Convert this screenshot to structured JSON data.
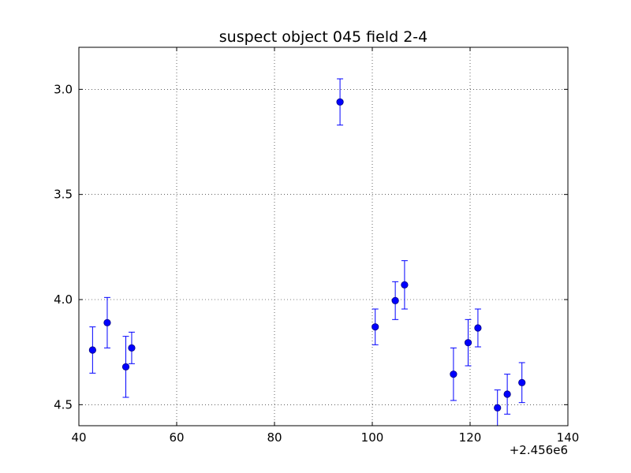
{
  "chart_data": {
    "type": "scatter",
    "title": "suspect object 045 field 2-4",
    "xlabel": "",
    "ylabel": "",
    "xlim": [
      40,
      140
    ],
    "ylim": [
      2.8,
      4.6
    ],
    "y_inverted": true,
    "grid": true,
    "x_offset_label": "+2.456e6",
    "x_ticks": [
      40,
      60,
      80,
      100,
      120,
      140
    ],
    "x_tick_labels": [
      "40",
      "60",
      "80",
      "100",
      "120",
      "140"
    ],
    "y_ticks": [
      3.0,
      3.5,
      4.0,
      4.5
    ],
    "y_tick_labels": [
      "3.0",
      "3.5",
      "4.0",
      "4.5"
    ],
    "colors": {
      "series": "#0000ff",
      "marker_edge": "#000080"
    },
    "series": [
      {
        "x": [
          42.8,
          45.8,
          49.6,
          50.8,
          93.4,
          100.6,
          104.7,
          106.6,
          116.6,
          119.6,
          121.6,
          125.6,
          127.6,
          130.6
        ],
        "y": [
          4.24,
          4.11,
          4.32,
          4.23,
          3.06,
          4.13,
          4.005,
          3.93,
          4.355,
          4.205,
          4.135,
          4.515,
          4.45,
          4.395
        ],
        "yerr": [
          0.11,
          0.12,
          0.145,
          0.075,
          0.11,
          0.085,
          0.09,
          0.115,
          0.125,
          0.11,
          0.09,
          0.085,
          0.095,
          0.095
        ]
      }
    ]
  }
}
